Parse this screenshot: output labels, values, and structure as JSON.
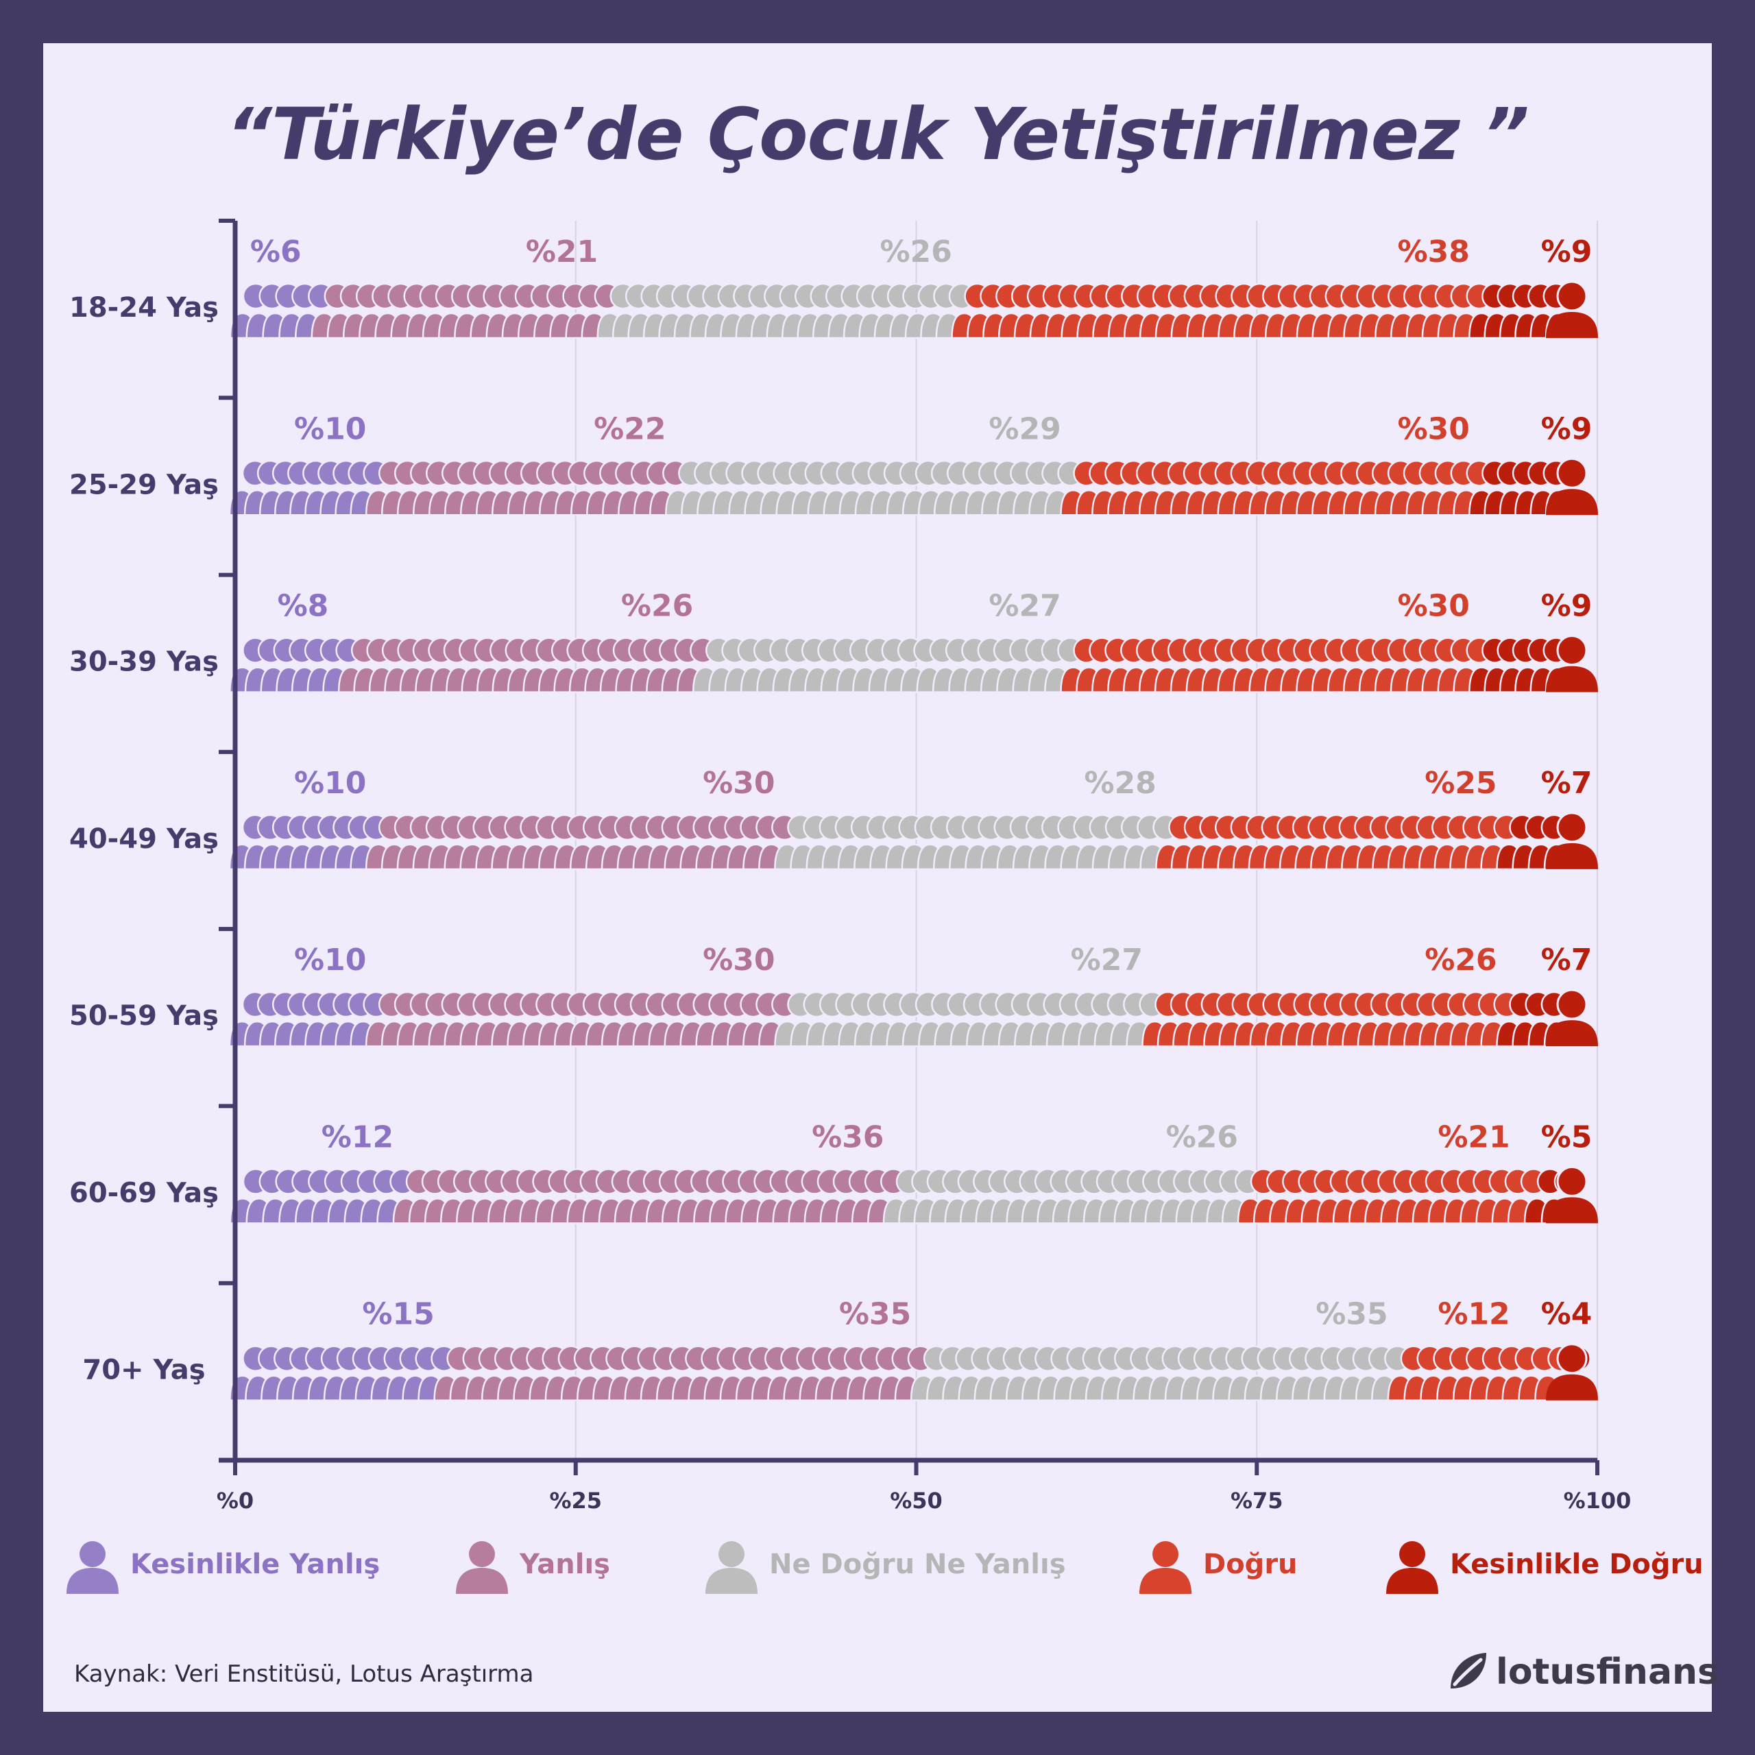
{
  "title": "“Türkiye’de Çocuk Yetiştirilmez ”",
  "source": "Kaynak: Veri Enstitüsü, Lotus Araştırma",
  "brand": "lotusfinans",
  "chart_data": {
    "type": "bar",
    "stacked": true,
    "orientation": "horizontal",
    "categories": [
      "18-24 Yaş",
      "25-29 Yaş",
      "30-39 Yaş",
      "40-49 Yaş",
      "50-59 Yaş",
      "60-69 Yaş",
      "70+ Yaş"
    ],
    "series": [
      {
        "name": "Kesinlikle Yanlış",
        "color": "#9580c8",
        "values": [
          6,
          10,
          8,
          10,
          10,
          12,
          15
        ]
      },
      {
        "name": "Yanlış",
        "color": "#b77d9d",
        "values": [
          21,
          22,
          26,
          30,
          30,
          36,
          35
        ]
      },
      {
        "name": "Ne Doğru Ne Yanlış",
        "color": "#bdbdbd",
        "values": [
          26,
          29,
          27,
          28,
          27,
          26,
          35
        ]
      },
      {
        "name": "Doğru",
        "color": "#d8432e",
        "values": [
          38,
          30,
          30,
          25,
          26,
          21,
          12
        ]
      },
      {
        "name": "Kesinlikle Doğru",
        "color": "#bb1f0c",
        "values": [
          9,
          9,
          9,
          7,
          7,
          5,
          4
        ]
      }
    ],
    "data_labels": [
      [
        "%6",
        "%21",
        "%26",
        "%38",
        "%9"
      ],
      [
        "%10",
        "%22",
        "%29",
        "%30",
        "%9"
      ],
      [
        "%8",
        "%26",
        "%27",
        "%30",
        "%9"
      ],
      [
        "%10",
        "%30",
        "%28",
        "%25",
        "%7"
      ],
      [
        "%10",
        "%30",
        "%27",
        "%26",
        "%7"
      ],
      [
        "%12",
        "%36",
        "%26",
        "%21",
        "%5"
      ],
      [
        "%15",
        "%35",
        "%35",
        "%12",
        "%4"
      ]
    ],
    "xticks": [
      "%0",
      "%25",
      "%50",
      "%75",
      "%100"
    ],
    "xlim": [
      0,
      100
    ],
    "grid": true,
    "legend_position": "bottom"
  }
}
